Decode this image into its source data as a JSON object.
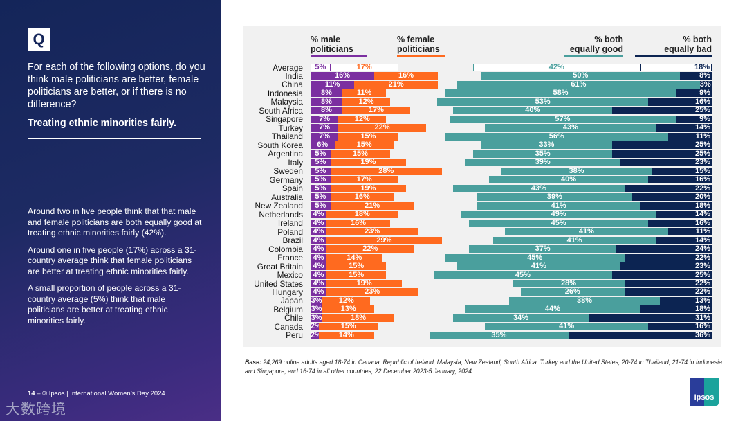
{
  "left_panel": {
    "q_badge": "Q",
    "question": "For each of the following options, do you think male politicians are better, female politicians are better, or if there is no difference?",
    "topic": "Treating ethnic minorities fairly.",
    "paragraphs": [
      "Around two in five people think that that male and female politicians are both equally good at treating ethnic minorities fairly (42%).",
      "Around one in five people (17%) across a 31-country average think that female politicians are better at treating ethnic minorities fairly.",
      "A small proportion of people across a 31-country average (5%) think that male politicians are better at treating ethnic minorities fairly."
    ],
    "footer_page": "14",
    "footer_text": " – © Ipsos | International Women’s Day 2024",
    "watermark": "大数跨境"
  },
  "base_label": "Base:",
  "base_text": " 24,269 online adults aged 18-74 in Canada, Republic of Ireland, Malaysia, New Zealand, South Africa, Turkey and the United States, 20-74 in Thailand, 21-74 in Indonesia and Singapore, and 16-74 in all other countries, 22 December 2023-5 January, 2024",
  "logo_text": "Ipsos",
  "chart_data": {
    "type": "bar",
    "stacked": true,
    "title": "Treating ethnic minorities fairly.",
    "value_suffix": "%",
    "categories": [
      "Average",
      "India",
      "China",
      "Indonesia",
      "Malaysia",
      "South Africa",
      "Singapore",
      "Turkey",
      "Thailand",
      "South Korea",
      "Argentina",
      "Italy",
      "Sweden",
      "Germany",
      "Spain",
      "Australia",
      "New Zealand",
      "Netherlands",
      "Ireland",
      "Poland",
      "Brazil",
      "Colombia",
      "France",
      "Great Britain",
      "Mexico",
      "United States",
      "Hungary",
      "Japan",
      "Belgium",
      "Chile",
      "Canada",
      "Peru"
    ],
    "series": [
      {
        "name": "% male politicians",
        "color": "#7b2fa0",
        "values": [
          5,
          16,
          11,
          8,
          8,
          8,
          7,
          7,
          7,
          6,
          5,
          5,
          5,
          5,
          5,
          5,
          5,
          4,
          4,
          4,
          4,
          4,
          4,
          4,
          4,
          4,
          4,
          3,
          3,
          3,
          2,
          2
        ]
      },
      {
        "name": "% female politicians",
        "color": "#ff6a1f",
        "values": [
          17,
          16,
          21,
          11,
          12,
          17,
          12,
          22,
          15,
          15,
          15,
          19,
          28,
          17,
          19,
          16,
          21,
          18,
          16,
          23,
          29,
          22,
          14,
          15,
          15,
          19,
          23,
          12,
          13,
          18,
          15,
          14
        ]
      },
      {
        "name": "% both equally good",
        "color": "#4a9f9d",
        "values": [
          42,
          50,
          61,
          58,
          53,
          40,
          57,
          43,
          56,
          33,
          35,
          39,
          38,
          40,
          43,
          39,
          41,
          49,
          45,
          41,
          41,
          37,
          45,
          41,
          45,
          28,
          26,
          38,
          44,
          34,
          41,
          35
        ]
      },
      {
        "name": "% both equally bad",
        "color": "#0c2452",
        "values": [
          18,
          8,
          3,
          9,
          16,
          25,
          9,
          14,
          11,
          25,
          25,
          23,
          15,
          16,
          22,
          20,
          18,
          14,
          16,
          11,
          14,
          24,
          22,
          23,
          25,
          22,
          22,
          13,
          18,
          31,
          16,
          36
        ]
      }
    ],
    "legend_lines": [
      [
        "% male",
        "politicians"
      ],
      [
        "% female",
        "politicians"
      ],
      [
        "% both",
        "equally good"
      ],
      [
        "% both",
        "equally bad"
      ]
    ],
    "legend": "top"
  }
}
